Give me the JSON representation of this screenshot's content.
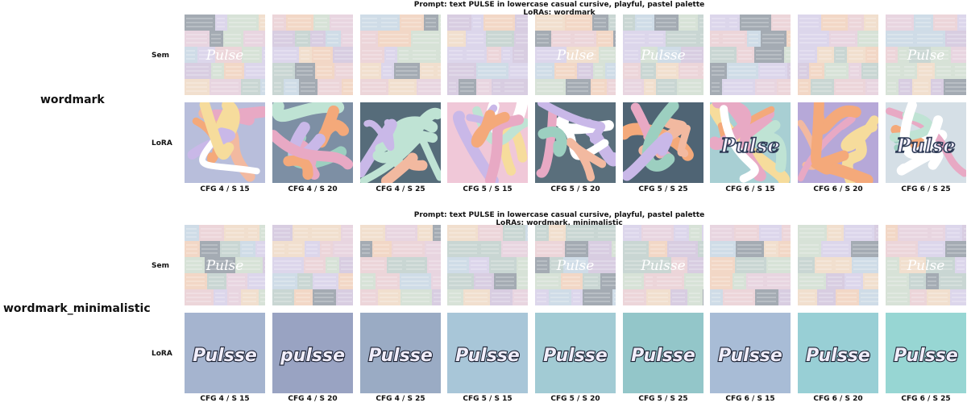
{
  "prompt_line": "Prompt: text PULSE in lowercase casual cursive, playful, pastel palette",
  "row_labels": {
    "sem": "Sem",
    "lora": "LoRA"
  },
  "columns": [
    "CFG 4 / S 15",
    "CFG 4 / S 20",
    "CFG 4 / S 25",
    "CFG 5 / S 15",
    "CFG 5 / S 20",
    "CFG 5 / S 25",
    "CFG 6 / S 15",
    "CFG 6 / S 20",
    "CFG 6 / S 25"
  ],
  "groups": [
    {
      "name": "wordmark",
      "loras_line": "LoRAs: wordmark",
      "sem_text": [
        "Pulse",
        "",
        "",
        "",
        "Pulse",
        "Pulsse",
        "",
        "",
        "Pulse"
      ],
      "lora_text": [
        "",
        "",
        "",
        "",
        "",
        "",
        "Pulse",
        "",
        "Pulse"
      ],
      "sem_colors": [
        "#c9a8c0",
        "#b9c2bf",
        "#d0b8c9"
      ],
      "lora_colors": [
        "#b8bedb",
        "#7d8fa4",
        "#566c7a",
        "#f0c8d8",
        "#5a6f7c",
        "#4f6474",
        "#a8cfd3",
        "#b6a8d8",
        "#d5dfe6"
      ]
    },
    {
      "name": "wordmark_minimalistic",
      "loras_line": "LoRAs: wordmark, minimalistic",
      "sem_text": [
        "Pulse",
        "",
        "",
        "",
        "Pulse",
        "Pulsse",
        "",
        "",
        "Pulse"
      ],
      "lora_text": [
        "Pulsse",
        "pulsse",
        "Pulsse",
        "Pulsse",
        "Pulsse",
        "Pulsse",
        "Pulsse",
        "Pulsse",
        "Pulsse"
      ],
      "lora_colors": [
        "#a5b4cf",
        "#99a3c2",
        "#9aabc4",
        "#a8c6d8",
        "#a2cbd4",
        "#93c6c9",
        "#a8bcd6",
        "#98cfd5",
        "#97d6d3"
      ]
    }
  ]
}
